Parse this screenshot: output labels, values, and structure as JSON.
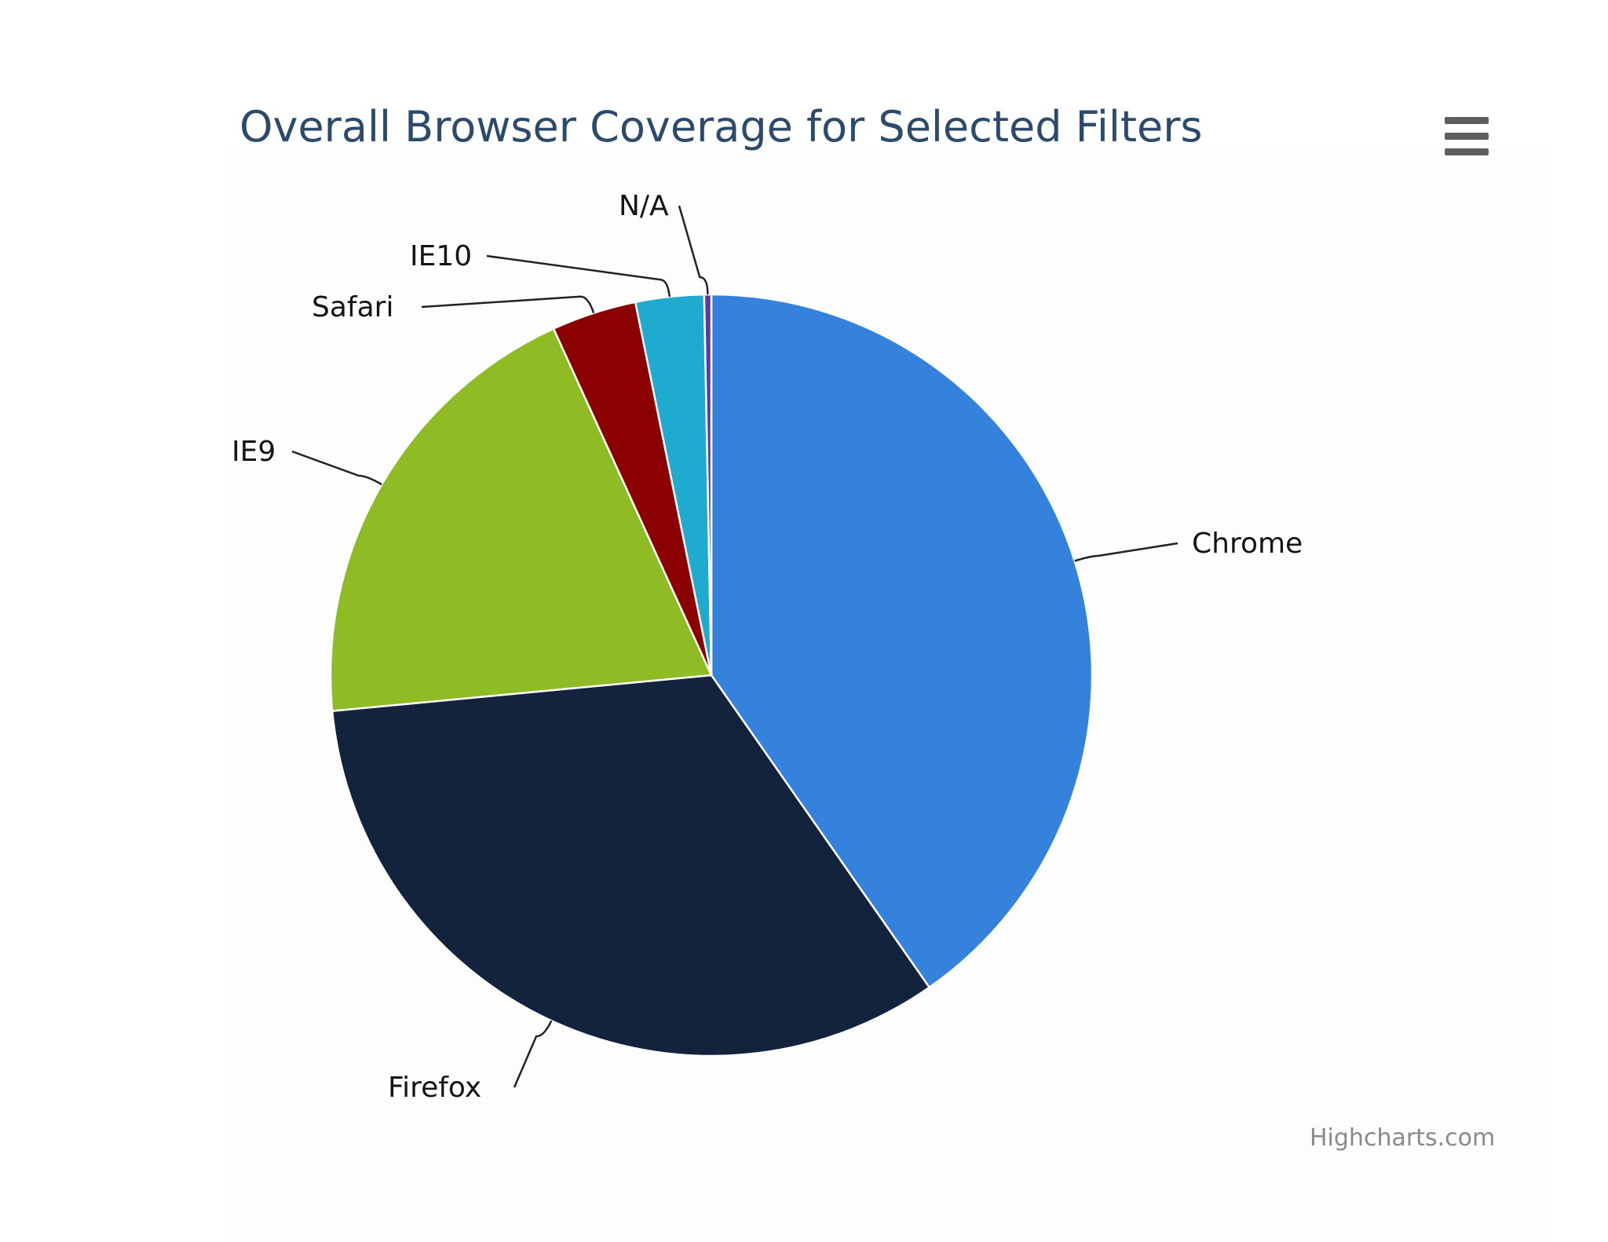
{
  "title": "Overall Browser Coverage for Selected Filters",
  "menu_icon": "hamburger-menu-icon",
  "credits": "Highcharts.com",
  "chart_data": {
    "type": "pie",
    "title": "Overall Browser Coverage for Selected Filters",
    "legend": "none",
    "slices": [
      {
        "name": "Chrome",
        "value": 40.3,
        "color": "#3482DB"
      },
      {
        "name": "Firefox",
        "value": 33.2,
        "color": "#14233D"
      },
      {
        "name": "IE9",
        "value": 19.7,
        "color": "#8FBB25"
      },
      {
        "name": "Safari",
        "value": 3.6,
        "color": "#8B0000"
      },
      {
        "name": "IE10",
        "value": 2.9,
        "color": "#1FAAD0"
      },
      {
        "name": "N/A",
        "value": 0.3,
        "color": "#5B3A9E"
      }
    ]
  }
}
